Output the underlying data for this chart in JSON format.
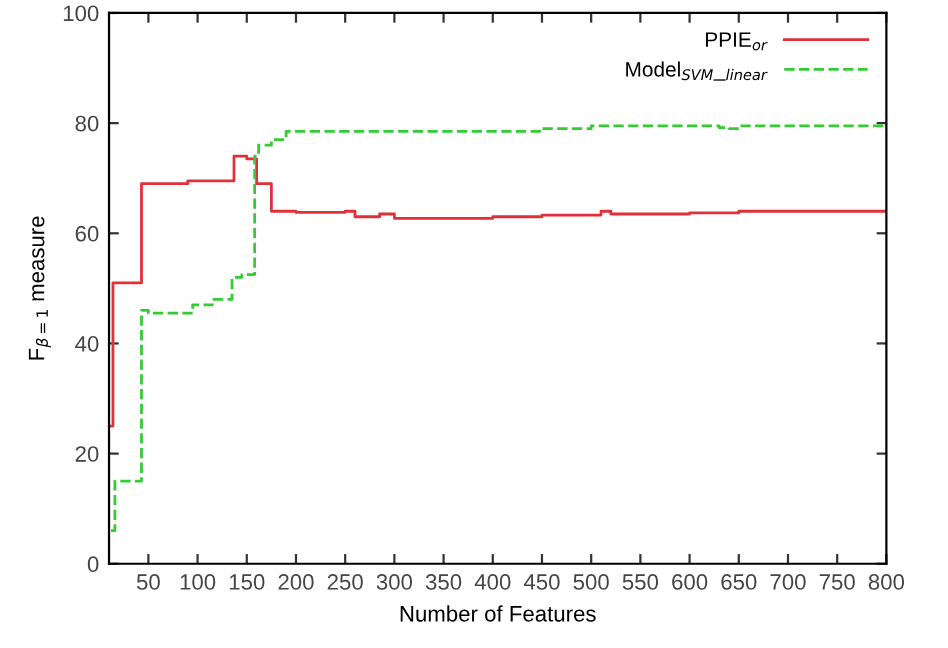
{
  "chart_data": {
    "type": "step",
    "xlabel": "Number of Features",
    "ylabel": "F$_{β=1}$ measure",
    "xlim": [
      10,
      800
    ],
    "ylim": [
      0,
      100
    ],
    "xticks": [
      50,
      100,
      150,
      200,
      250,
      300,
      350,
      400,
      450,
      500,
      550,
      600,
      650,
      700,
      750,
      800
    ],
    "yticks": [
      0,
      20,
      40,
      60,
      80,
      100
    ],
    "grid": false,
    "legend": "top right",
    "series": [
      {
        "name": "PPIE$_{or}$",
        "color": "#e0303a",
        "line_style": "solid",
        "x": [
          12,
          14,
          43,
          90,
          137,
          150,
          160,
          175,
          200,
          250,
          260,
          285,
          300,
          400,
          450,
          510,
          520,
          600,
          650,
          800
        ],
        "values": [
          25,
          51,
          69,
          69.5,
          74,
          73.5,
          69,
          64,
          63.8,
          64,
          63,
          63.5,
          62.7,
          63,
          63.3,
          64,
          63.5,
          63.7,
          64,
          64
        ]
      },
      {
        "name": "Model$_{SVM}$_$_{linear}$",
        "color": "#33cc33",
        "line_style": "dashed",
        "x": [
          12,
          16,
          43,
          50,
          95,
          115,
          135,
          145,
          158,
          162,
          175,
          190,
          200,
          450,
          500,
          630,
          640,
          650,
          800
        ],
        "values": [
          6,
          15,
          46,
          45.5,
          47,
          48,
          52,
          52.5,
          74,
          76,
          77,
          78.5,
          78.5,
          79,
          79.5,
          79.2,
          79,
          79.5,
          80
        ]
      }
    ]
  }
}
